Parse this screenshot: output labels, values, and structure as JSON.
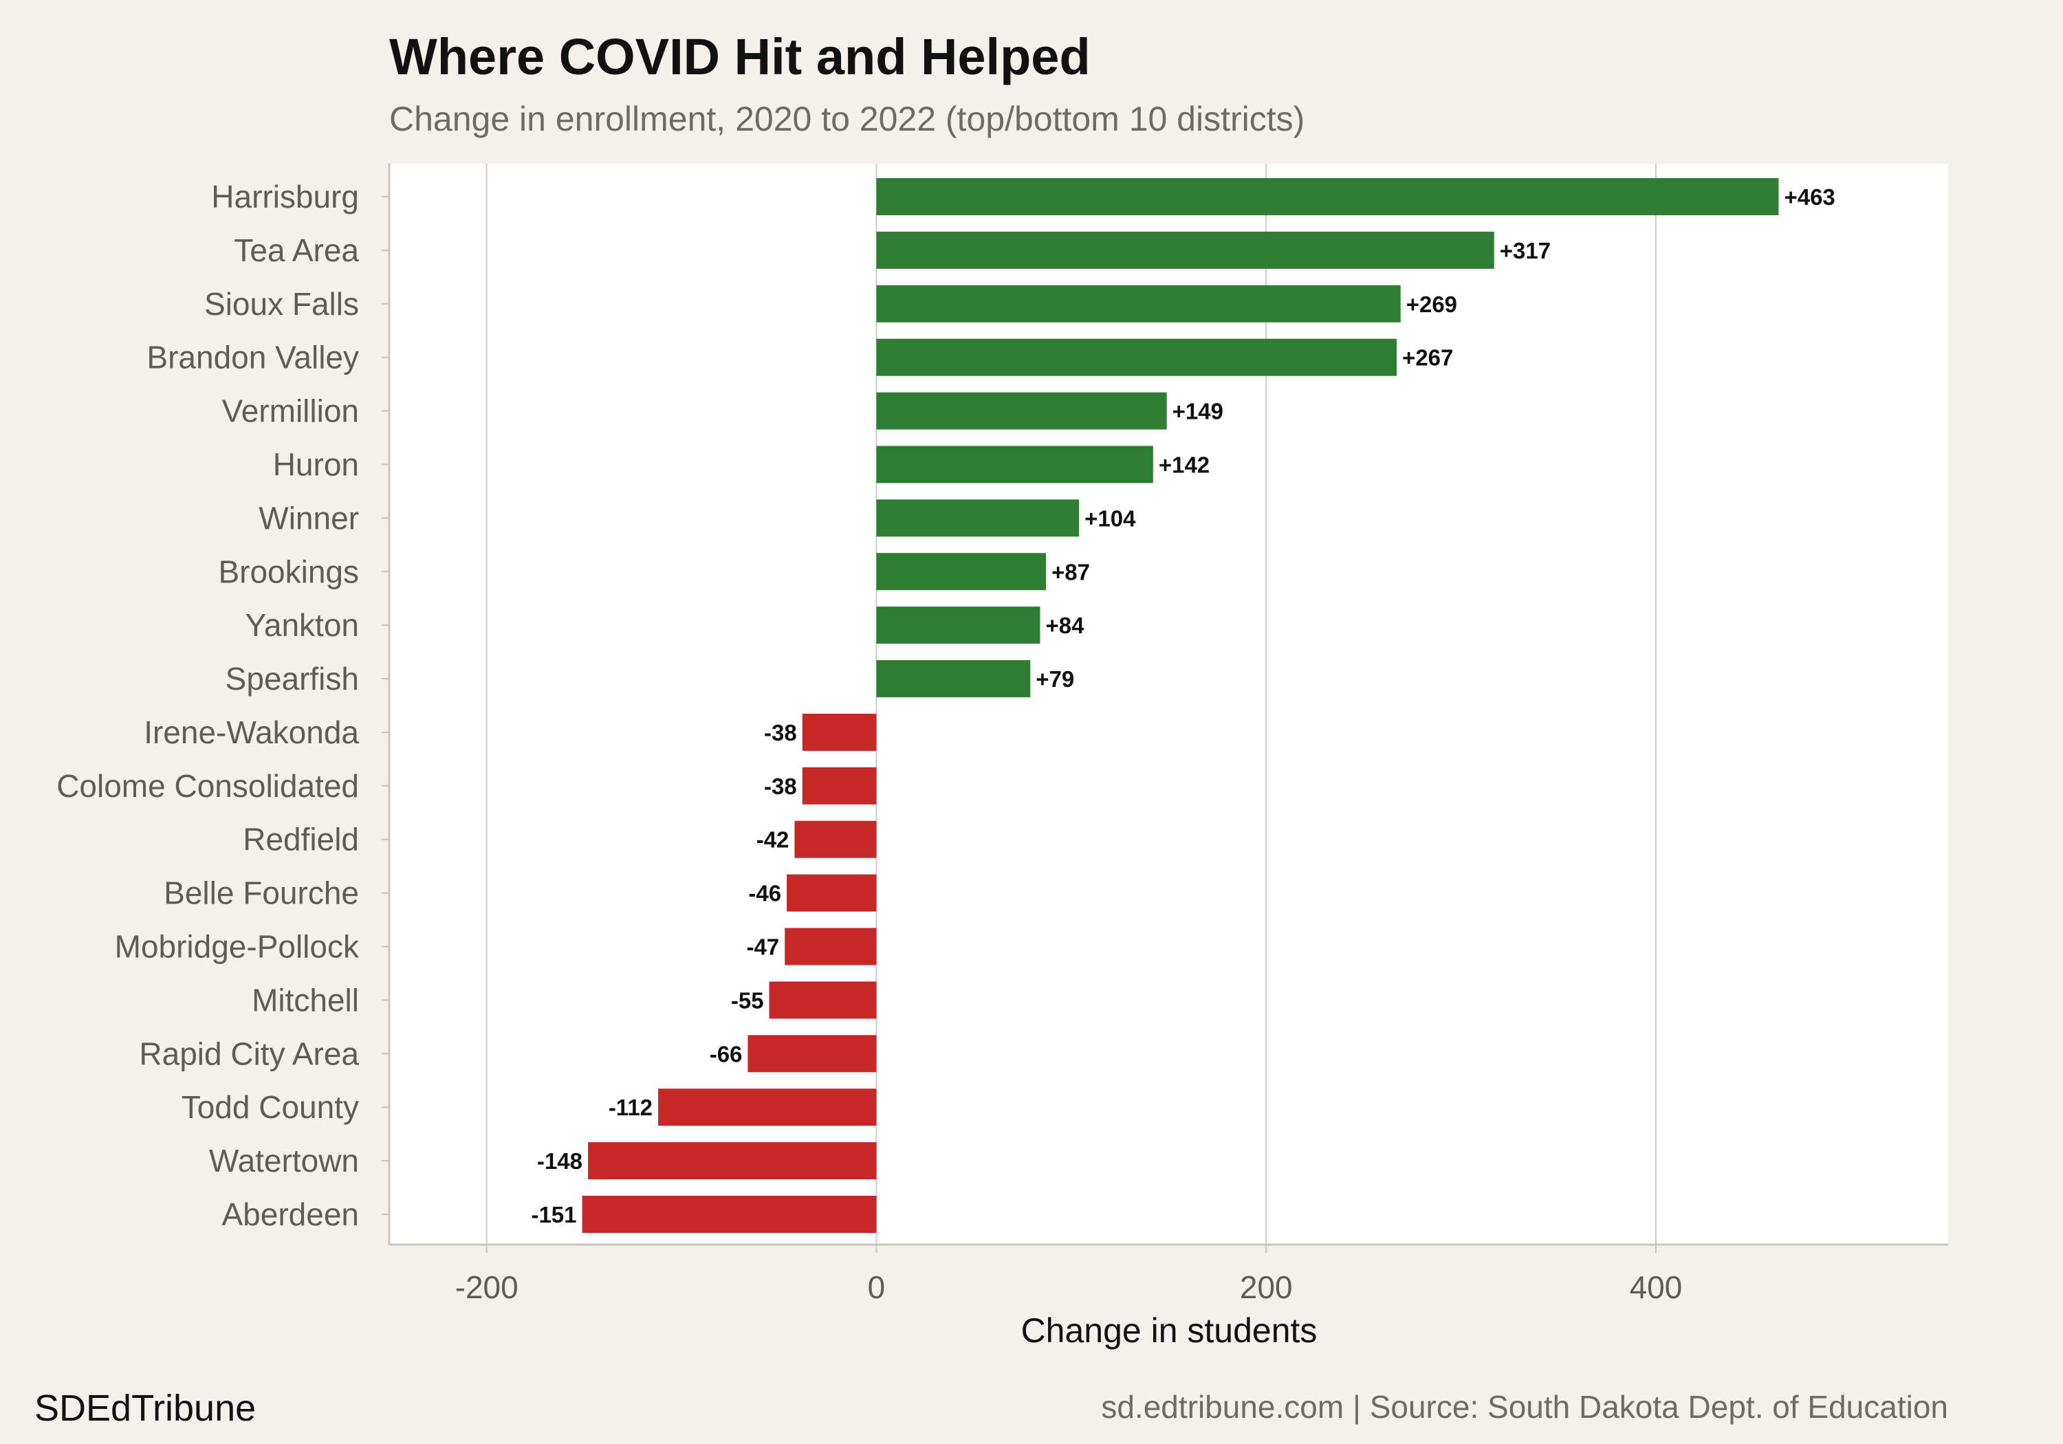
{
  "chart_data": {
    "type": "bar",
    "orientation": "horizontal",
    "title": "Where COVID Hit and Helped",
    "subtitle": "Change in enrollment, 2020 to 2022 (top/bottom 10 districts)",
    "xlabel": "Change in students",
    "ylabel": "",
    "xlim": [
      -250,
      550
    ],
    "xticks": [
      -200,
      0,
      200,
      400
    ],
    "xtick_labels": [
      "-200",
      "0",
      "200",
      "400"
    ],
    "grid": true,
    "categories": [
      "Harrisburg",
      "Tea Area",
      "Sioux Falls",
      "Brandon Valley",
      "Vermillion",
      "Huron",
      "Winner",
      "Brookings",
      "Yankton",
      "Spearfish",
      "Irene-Wakonda",
      "Colome Consolidated",
      "Redfield",
      "Belle Fourche",
      "Mobridge-Pollock",
      "Mitchell",
      "Rapid City Area",
      "Todd County",
      "Watertown",
      "Aberdeen"
    ],
    "values": [
      463,
      317,
      269,
      267,
      149,
      142,
      104,
      87,
      84,
      79,
      -38,
      -38,
      -42,
      -46,
      -47,
      -55,
      -66,
      -112,
      -148,
      -151
    ],
    "data_labels": [
      "+463",
      "+317",
      "+269",
      "+267",
      "+149",
      "+142",
      "+104",
      "+87",
      "+84",
      "+79",
      "-38",
      "-38",
      "-42",
      "-46",
      "-47",
      "-55",
      "-66",
      "-112",
      "-148",
      "-151"
    ],
    "colors": {
      "positive": "#2e7d32",
      "negative": "#c62828",
      "panel": "#ffffff",
      "background": "#f4f1ec",
      "grid": "#cccccc"
    }
  },
  "footer": {
    "brand": "SDEdTribune",
    "source": "sd.edtribune.com | Source: South Dakota Dept. of Education"
  }
}
